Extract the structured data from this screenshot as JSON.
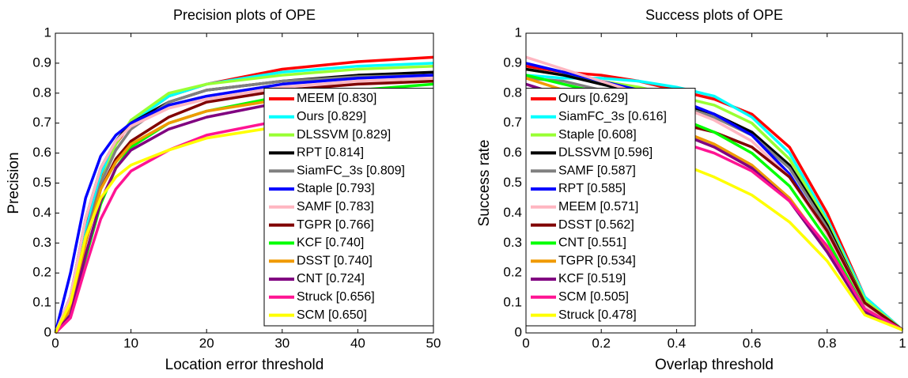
{
  "chart_data": [
    {
      "type": "line",
      "title": "Precision plots of OPE",
      "x_label": "Location error threshold",
      "y_label": "Precision",
      "x": [
        0,
        2,
        4,
        6,
        8,
        10,
        15,
        20,
        30,
        40,
        50
      ],
      "xlim": [
        0,
        50
      ],
      "xticks": [
        0,
        10,
        20,
        30,
        40,
        50
      ],
      "ylim": [
        0,
        1
      ],
      "yticks": [
        0,
        0.1,
        0.2,
        0.3,
        0.4,
        0.5,
        0.6,
        0.7,
        0.8,
        0.9,
        1
      ],
      "grid": false,
      "legend_loc": "lower right",
      "series": [
        {
          "name": "MEEM [0.830]",
          "color": "#ff0000",
          "values": [
            0,
            0.12,
            0.35,
            0.52,
            0.63,
            0.7,
            0.79,
            0.83,
            0.88,
            0.905,
            0.92
          ]
        },
        {
          "name": "Ours [0.829]",
          "color": "#00ffff",
          "values": [
            0,
            0.1,
            0.34,
            0.53,
            0.64,
            0.7,
            0.79,
            0.83,
            0.87,
            0.89,
            0.9
          ]
        },
        {
          "name": "DLSSVM [0.829]",
          "color": "#99ff33",
          "values": [
            0,
            0.08,
            0.3,
            0.5,
            0.63,
            0.71,
            0.8,
            0.83,
            0.86,
            0.88,
            0.89
          ]
        },
        {
          "name": "RPT [0.814]",
          "color": "#000000",
          "values": [
            0,
            0.12,
            0.38,
            0.55,
            0.64,
            0.7,
            0.77,
            0.81,
            0.84,
            0.86,
            0.87
          ]
        },
        {
          "name": "SiamFC_3s [0.809]",
          "color": "#808080",
          "values": [
            0,
            0.1,
            0.32,
            0.5,
            0.61,
            0.68,
            0.77,
            0.81,
            0.84,
            0.855,
            0.86
          ]
        },
        {
          "name": "Staple [0.793]",
          "color": "#0000ff",
          "values": [
            0,
            0.2,
            0.45,
            0.59,
            0.66,
            0.7,
            0.76,
            0.79,
            0.83,
            0.85,
            0.86
          ]
        },
        {
          "name": "SAMF [0.783]",
          "color": "#ffb6c1",
          "values": [
            0,
            0.12,
            0.38,
            0.55,
            0.64,
            0.69,
            0.75,
            0.78,
            0.82,
            0.84,
            0.85
          ]
        },
        {
          "name": "TGPR [0.766]",
          "color": "#800000",
          "values": [
            0,
            0.08,
            0.3,
            0.48,
            0.58,
            0.64,
            0.72,
            0.77,
            0.81,
            0.83,
            0.84
          ]
        },
        {
          "name": "KCF [0.740]",
          "color": "#00ff00",
          "values": [
            0,
            0.06,
            0.25,
            0.43,
            0.55,
            0.62,
            0.7,
            0.74,
            0.79,
            0.81,
            0.83
          ]
        },
        {
          "name": "DSST [0.740]",
          "color": "#f09a00",
          "values": [
            0,
            0.08,
            0.3,
            0.48,
            0.57,
            0.63,
            0.7,
            0.74,
            0.78,
            0.8,
            0.81
          ]
        },
        {
          "name": "CNT [0.724]",
          "color": "#800080",
          "values": [
            0,
            0.06,
            0.26,
            0.44,
            0.55,
            0.61,
            0.68,
            0.72,
            0.77,
            0.79,
            0.8
          ]
        },
        {
          "name": "Struck [0.656]",
          "color": "#ff1493",
          "values": [
            0,
            0.05,
            0.22,
            0.38,
            0.48,
            0.54,
            0.61,
            0.66,
            0.71,
            0.74,
            0.76
          ]
        },
        {
          "name": "SCM [0.650]",
          "color": "#ffff00",
          "values": [
            0,
            0.1,
            0.32,
            0.45,
            0.52,
            0.56,
            0.61,
            0.65,
            0.69,
            0.71,
            0.73
          ]
        }
      ]
    },
    {
      "type": "line",
      "title": "Success plots of OPE",
      "x_label": "Overlap threshold",
      "y_label": "Success rate",
      "x": [
        0,
        0.1,
        0.2,
        0.3,
        0.4,
        0.5,
        0.6,
        0.7,
        0.8,
        0.9,
        1
      ],
      "xlim": [
        0,
        1
      ],
      "xticks": [
        0,
        0.2,
        0.4,
        0.6,
        0.8,
        1
      ],
      "ylim": [
        0,
        1
      ],
      "yticks": [
        0,
        0.1,
        0.2,
        0.3,
        0.4,
        0.5,
        0.6,
        0.7,
        0.8,
        0.9,
        1
      ],
      "grid": false,
      "legend_loc": "lower left",
      "series": [
        {
          "name": "Ours [0.629]",
          "color": "#ff0000",
          "values": [
            0.89,
            0.87,
            0.86,
            0.84,
            0.81,
            0.78,
            0.73,
            0.62,
            0.4,
            0.12,
            0.01
          ]
        },
        {
          "name": "SiamFC_3s [0.616]",
          "color": "#00ffff",
          "values": [
            0.86,
            0.85,
            0.85,
            0.84,
            0.82,
            0.79,
            0.72,
            0.6,
            0.38,
            0.12,
            0.01
          ]
        },
        {
          "name": "Staple [0.608]",
          "color": "#99ff33",
          "values": [
            0.88,
            0.86,
            0.84,
            0.82,
            0.79,
            0.76,
            0.7,
            0.58,
            0.37,
            0.11,
            0.01
          ]
        },
        {
          "name": "DLSSVM [0.596]",
          "color": "#000000",
          "values": [
            0.88,
            0.86,
            0.83,
            0.8,
            0.77,
            0.73,
            0.67,
            0.56,
            0.36,
            0.1,
            0.01
          ]
        },
        {
          "name": "SAMF [0.587]",
          "color": "#808080",
          "values": [
            0.85,
            0.84,
            0.81,
            0.79,
            0.76,
            0.72,
            0.66,
            0.55,
            0.35,
            0.1,
            0.01
          ]
        },
        {
          "name": "RPT [0.585]",
          "color": "#0000ff",
          "values": [
            0.9,
            0.87,
            0.84,
            0.81,
            0.78,
            0.73,
            0.66,
            0.53,
            0.33,
            0.09,
            0.01
          ]
        },
        {
          "name": "MEEM [0.571]",
          "color": "#ffb6c1",
          "values": [
            0.92,
            0.88,
            0.84,
            0.8,
            0.76,
            0.71,
            0.64,
            0.52,
            0.33,
            0.09,
            0.01
          ]
        },
        {
          "name": "DSST [0.562]",
          "color": "#800000",
          "values": [
            0.81,
            0.79,
            0.76,
            0.73,
            0.7,
            0.67,
            0.62,
            0.52,
            0.34,
            0.1,
            0.01
          ]
        },
        {
          "name": "CNT [0.551]",
          "color": "#00ff00",
          "values": [
            0.86,
            0.83,
            0.8,
            0.76,
            0.72,
            0.67,
            0.6,
            0.49,
            0.31,
            0.08,
            0.01
          ]
        },
        {
          "name": "TGPR [0.534]",
          "color": "#f09a00",
          "values": [
            0.85,
            0.81,
            0.77,
            0.73,
            0.68,
            0.63,
            0.56,
            0.45,
            0.28,
            0.07,
            0.01
          ]
        },
        {
          "name": "KCF [0.519]",
          "color": "#800080",
          "values": [
            0.83,
            0.79,
            0.75,
            0.71,
            0.67,
            0.62,
            0.55,
            0.44,
            0.27,
            0.07,
            0.01
          ]
        },
        {
          "name": "SCM [0.505]",
          "color": "#ff1493",
          "values": [
            0.79,
            0.76,
            0.72,
            0.68,
            0.64,
            0.6,
            0.54,
            0.44,
            0.29,
            0.08,
            0.01
          ]
        },
        {
          "name": "Struck [0.478]",
          "color": "#ffff00",
          "values": [
            0.79,
            0.74,
            0.68,
            0.62,
            0.57,
            0.52,
            0.46,
            0.37,
            0.24,
            0.06,
            0.01
          ]
        }
      ]
    }
  ]
}
